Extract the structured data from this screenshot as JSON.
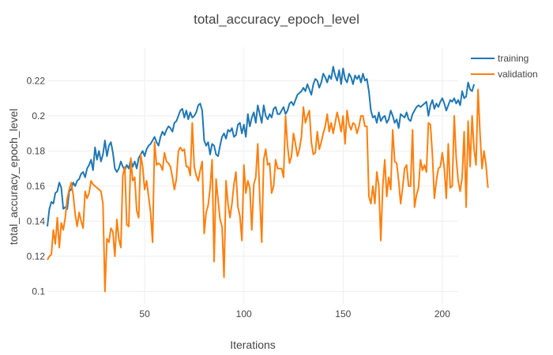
{
  "chart_data": {
    "type": "line",
    "title": "total_accuracy_epoch_level",
    "xlabel": "Iterations",
    "ylabel": "total_accuracy_epoch_level",
    "xlim": [
      1,
      208
    ],
    "ylim": [
      0.093,
      0.239
    ],
    "x_ticks": [
      50,
      100,
      150,
      200
    ],
    "y_ticks": [
      0.1,
      0.12,
      0.14,
      0.16,
      0.18,
      0.2,
      0.22
    ],
    "x_tick_labels": [
      "50",
      "100",
      "150",
      "200"
    ],
    "y_tick_labels": [
      "0.1",
      "0.12",
      "0.14",
      "0.16",
      "0.18",
      "0.2",
      "0.22"
    ],
    "grid": true,
    "legend_position": "top-right",
    "series": [
      {
        "name": "training",
        "color": "#1f77b4",
        "values": [
          0.137,
          0.147,
          0.151,
          0.15,
          0.156,
          0.157,
          0.162,
          0.159,
          0.147,
          0.148,
          0.147,
          0.157,
          0.158,
          0.162,
          0.16,
          0.163,
          0.164,
          0.167,
          0.168,
          0.165,
          0.17,
          0.172,
          0.175,
          0.169,
          0.182,
          0.175,
          0.18,
          0.174,
          0.178,
          0.186,
          0.177,
          0.183,
          0.185,
          0.179,
          0.17,
          0.168,
          0.17,
          0.174,
          0.171,
          0.169,
          0.172,
          0.17,
          0.175,
          0.171,
          0.174,
          0.17,
          0.176,
          0.178,
          0.18,
          0.177,
          0.181,
          0.183,
          0.184,
          0.186,
          0.188,
          0.185,
          0.183,
          0.188,
          0.191,
          0.189,
          0.192,
          0.194,
          0.193,
          0.191,
          0.196,
          0.197,
          0.2,
          0.203,
          0.204,
          0.199,
          0.203,
          0.198,
          0.202,
          0.199,
          0.2,
          0.202,
          0.206,
          0.207,
          0.203,
          0.186,
          0.183,
          0.185,
          0.178,
          0.184,
          0.183,
          0.178,
          0.177,
          0.183,
          0.188,
          0.19,
          0.187,
          0.192,
          0.191,
          0.193,
          0.188,
          0.189,
          0.195,
          0.196,
          0.19,
          0.195,
          0.188,
          0.201,
          0.194,
          0.199,
          0.202,
          0.196,
          0.206,
          0.201,
          0.196,
          0.206,
          0.2,
          0.198,
          0.201,
          0.199,
          0.204,
          0.205,
          0.201,
          0.201,
          0.203,
          0.205,
          0.201,
          0.203,
          0.207,
          0.208,
          0.206,
          0.209,
          0.212,
          0.213,
          0.214,
          0.216,
          0.214,
          0.218,
          0.215,
          0.212,
          0.218,
          0.221,
          0.22,
          0.216,
          0.219,
          0.224,
          0.222,
          0.219,
          0.223,
          0.221,
          0.228,
          0.223,
          0.22,
          0.226,
          0.218,
          0.227,
          0.221,
          0.219,
          0.224,
          0.222,
          0.218,
          0.223,
          0.221,
          0.223,
          0.219,
          0.224,
          0.22,
          0.221,
          0.214,
          0.203,
          0.199,
          0.2,
          0.196,
          0.202,
          0.197,
          0.199,
          0.2,
          0.196,
          0.198,
          0.203,
          0.2,
          0.196,
          0.198,
          0.193,
          0.201,
          0.2,
          0.199,
          0.202,
          0.198,
          0.197,
          0.201,
          0.203,
          0.205,
          0.206,
          0.205,
          0.206,
          0.207,
          0.208,
          0.2,
          0.206,
          0.209,
          0.204,
          0.207,
          0.205,
          0.208,
          0.21,
          0.207,
          0.203,
          0.206,
          0.209,
          0.208,
          0.21,
          0.207,
          0.209,
          0.206,
          0.214,
          0.21,
          0.211,
          0.219,
          0.215,
          0.214,
          0.218
        ]
      },
      {
        "name": "validation",
        "color": "#ff7f0e",
        "values": [
          0.118,
          0.12,
          0.121,
          0.135,
          0.127,
          0.142,
          0.125,
          0.139,
          0.135,
          0.142,
          0.153,
          0.158,
          0.162,
          0.155,
          0.144,
          0.137,
          0.145,
          0.14,
          0.136,
          0.157,
          0.153,
          0.156,
          0.163,
          0.161,
          0.16,
          0.159,
          0.158,
          0.157,
          0.15,
          0.1,
          0.13,
          0.128,
          0.136,
          0.134,
          0.12,
          0.141,
          0.13,
          0.125,
          0.166,
          0.171,
          0.138,
          0.137,
          0.176,
          0.163,
          0.165,
          0.146,
          0.142,
          0.178,
          0.171,
          0.158,
          0.163,
          0.154,
          0.145,
          0.128,
          0.185,
          0.172,
          0.173,
          0.172,
          0.169,
          0.179,
          0.174,
          0.173,
          0.171,
          0.165,
          0.158,
          0.164,
          0.18,
          0.182,
          0.18,
          0.181,
          0.171,
          0.171,
          0.166,
          0.196,
          0.171,
          0.166,
          0.163,
          0.169,
          0.174,
          0.133,
          0.145,
          0.149,
          0.159,
          0.175,
          0.117,
          0.164,
          0.152,
          0.141,
          0.137,
          0.108,
          0.163,
          0.15,
          0.142,
          0.15,
          0.161,
          0.168,
          0.148,
          0.143,
          0.129,
          0.172,
          0.156,
          0.163,
          0.159,
          0.135,
          0.161,
          0.165,
          0.184,
          0.154,
          0.128,
          0.175,
          0.181,
          0.172,
          0.173,
          0.156,
          0.16,
          0.175,
          0.17,
          0.17,
          0.17,
          0.165,
          0.2,
          0.183,
          0.173,
          0.177,
          0.19,
          0.184,
          0.177,
          0.181,
          0.188,
          0.205,
          0.196,
          0.2,
          0.203,
          0.185,
          0.178,
          0.179,
          0.191,
          0.181,
          0.185,
          0.19,
          0.194,
          0.201,
          0.191,
          0.196,
          0.19,
          0.196,
          0.202,
          0.197,
          0.191,
          0.2,
          0.184,
          0.203,
          0.195,
          0.192,
          0.196,
          0.195,
          0.19,
          0.194,
          0.2,
          0.2,
          0.194,
          0.194,
          0.154,
          0.15,
          0.16,
          0.15,
          0.168,
          0.16,
          0.129,
          0.16,
          0.175,
          0.154,
          0.165,
          0.158,
          0.192,
          0.174,
          0.173,
          0.163,
          0.15,
          0.159,
          0.17,
          0.172,
          0.16,
          0.16,
          0.192,
          0.148,
          0.155,
          0.159,
          0.175,
          0.169,
          0.172,
          0.168,
          0.196,
          0.195,
          0.178,
          0.153,
          0.163,
          0.17,
          0.171,
          0.179,
          0.17,
          0.153,
          0.184,
          0.159,
          0.16,
          0.2,
          0.176,
          0.163,
          0.157,
          0.165,
          0.191,
          0.148,
          0.197,
          0.171,
          0.2,
          0.181,
          0.172,
          0.215,
          0.19,
          0.17,
          0.18,
          0.172,
          0.159
        ]
      }
    ]
  }
}
